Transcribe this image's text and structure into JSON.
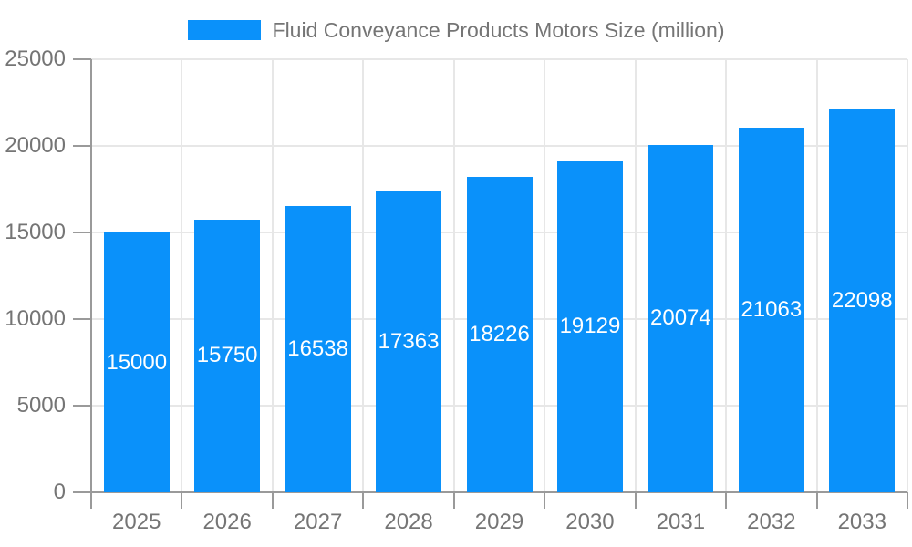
{
  "legend": {
    "label": "Fluid Conveyance Products Motors Size (million)"
  },
  "chart_data": {
    "type": "bar",
    "title": "Fluid Conveyance Products Motors Size (million)",
    "categories": [
      "2025",
      "2026",
      "2027",
      "2028",
      "2029",
      "2030",
      "2031",
      "2032",
      "2033"
    ],
    "values": [
      15000,
      15750,
      16538,
      17363,
      18226,
      19129,
      20074,
      21063,
      22098
    ],
    "series_name": "Fluid Conveyance Products Motors Size (million)",
    "xlabel": "",
    "ylabel": "",
    "ylim": [
      0,
      25000
    ],
    "yticks": [
      0,
      5000,
      10000,
      15000,
      20000,
      25000
    ],
    "grid": true,
    "legend_position": "top",
    "value_labels": "centered-inside-white",
    "colors": {
      "bar": "#0a91fa",
      "value_label": "#ffffff",
      "axis_text": "#757575",
      "axis_line": "#9a9a9a",
      "grid_line": "#e7e7e7",
      "background": "#ffffff"
    }
  }
}
